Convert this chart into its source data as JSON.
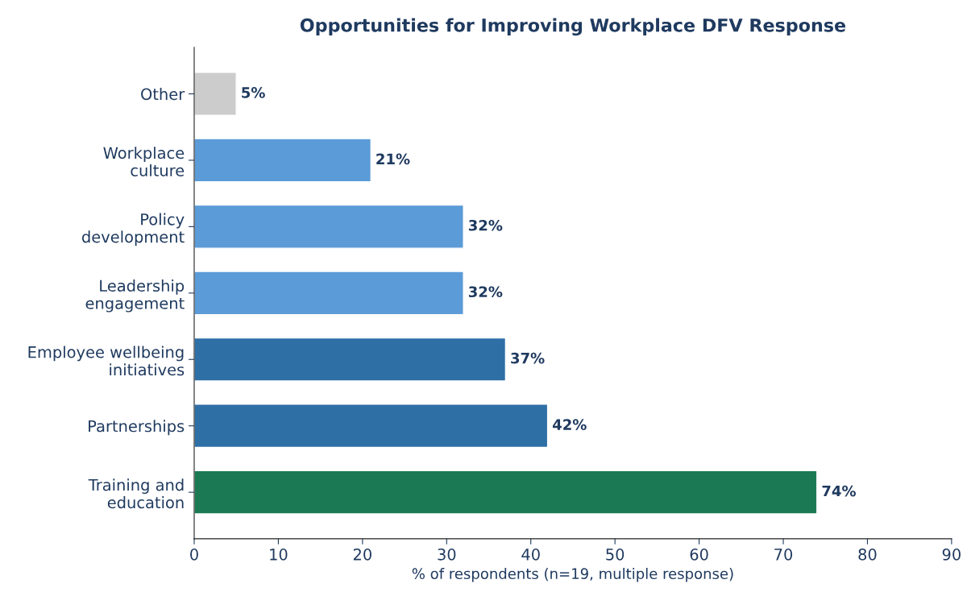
{
  "chart_data": {
    "type": "bar",
    "orientation": "horizontal",
    "title": "Opportunities for Improving Workplace DFV Response",
    "xlabel": "% of respondents (n=19, multiple response)",
    "categories": [
      "Other",
      "Workplace\nculture",
      "Policy\ndevelopment",
      "Leadership\nengagement",
      "Employee wellbeing\ninitiatives",
      "Partnerships",
      "Training and\neducation"
    ],
    "values": [
      5,
      21,
      32,
      32,
      37,
      42,
      74
    ],
    "colors": [
      "#cccccc",
      "#5b9bd7",
      "#5b9bd7",
      "#5b9bd7",
      "#2e6fa6",
      "#2e6fa6",
      "#1b7a53"
    ],
    "value_labels": [
      "5%",
      "21%",
      "32%",
      "32%",
      "37%",
      "42%",
      "74%"
    ],
    "xlim": [
      0,
      90
    ],
    "xticks": [
      0,
      10,
      20,
      30,
      40,
      50,
      60,
      70,
      80,
      90
    ],
    "grid": false,
    "legend": false
  }
}
